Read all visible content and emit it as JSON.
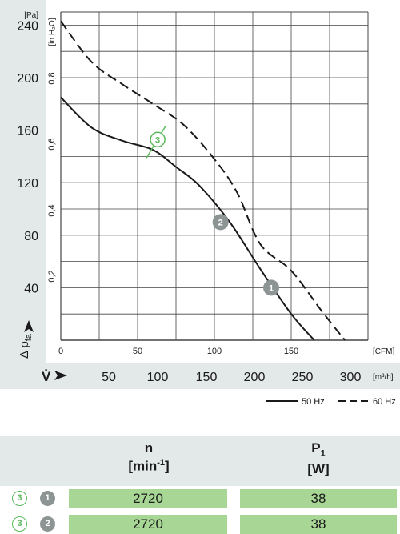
{
  "chart_data": {
    "type": "line",
    "y_axis_left": {
      "label": "Δ p_fa",
      "unit": "[Pa]",
      "ticks": [
        40,
        80,
        120,
        160,
        200,
        240
      ],
      "range": [
        0,
        250
      ]
    },
    "y_axis_inner": {
      "unit": "[in H₂O]",
      "ticks": [
        "0,2",
        "0,4",
        "0,6",
        "0,8"
      ]
    },
    "x_axis_cfm": {
      "unit": "[CFM]",
      "ticks": [
        0,
        50,
        100,
        150
      ],
      "range": [
        0,
        200
      ]
    },
    "x_axis_m3h": {
      "label": "V̇",
      "unit": "[m³/h]",
      "ticks": [
        50,
        100,
        150,
        200,
        250,
        300
      ]
    },
    "series": [
      {
        "name": "50 Hz",
        "style": "solid",
        "x": [
          0,
          20,
          40,
          60,
          75,
          90,
          110,
          130,
          150,
          165
        ],
        "y": [
          185,
          162,
          152,
          145,
          132,
          118,
          90,
          54,
          20,
          0
        ]
      },
      {
        "name": "60 Hz",
        "style": "dashed",
        "x": [
          0,
          20,
          40,
          60,
          80,
          100,
          115,
          130,
          150,
          170,
          185
        ],
        "y": [
          243,
          212,
          195,
          180,
          164,
          138,
          112,
          73,
          53,
          22,
          0
        ]
      }
    ],
    "markers": [
      {
        "label": "1",
        "kind": "operating-point",
        "x": 137,
        "y": 40
      },
      {
        "label": "2",
        "kind": "operating-point",
        "x": 104,
        "y": 90
      },
      {
        "label": "3",
        "kind": "max-point",
        "x": 61,
        "y": 148
      }
    ],
    "legend_position": "bottom-right",
    "grid": true
  },
  "table": {
    "columns": [
      {
        "name": "n",
        "unit_prefix": "[min",
        "unit_sup": "-1",
        "unit_suffix": "]"
      },
      {
        "name": "P",
        "sub": "1",
        "unit": "[W]"
      }
    ],
    "rows": [
      {
        "badge_a": "3",
        "badge_b": "1",
        "n": "2720",
        "p1": "38"
      },
      {
        "badge_a": "3",
        "badge_b": "2",
        "n": "2720",
        "p1": "38"
      }
    ]
  },
  "colors": {
    "panel": "#e3e8e8",
    "grid": "#444444",
    "cell": "#a8d695",
    "marker_grey": "#8c9494",
    "marker_green": "#5cb85c"
  }
}
